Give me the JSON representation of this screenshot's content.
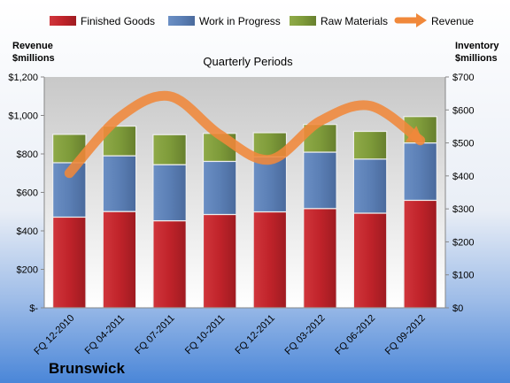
{
  "company": "Brunswick",
  "colors": {
    "finished": "#c0232a",
    "wip": "#5b7fb5",
    "raw": "#7e9b3a",
    "revenue": "#f0883a"
  },
  "chart_data": {
    "type": "bar",
    "stacked": true,
    "title": "Quarterly Periods",
    "categories": [
      "FQ 12-2010",
      "FQ 04-2011",
      "FQ 07-2011",
      "FQ 10-2011",
      "FQ 12-2011",
      "FQ 03-2012",
      "FQ 06-2012",
      "FQ 09-2012"
    ],
    "series": [
      {
        "name": "Finished Goods",
        "axis": "right",
        "values": [
          275,
          292,
          264,
          283,
          291,
          301,
          287,
          326
        ]
      },
      {
        "name": "Work in Progress",
        "axis": "right",
        "values": [
          165,
          169,
          170,
          161,
          167,
          171,
          164,
          174
        ]
      },
      {
        "name": "Raw Materials",
        "axis": "right",
        "values": [
          86,
          90,
          91,
          85,
          73,
          84,
          84,
          80
        ]
      },
      {
        "name": "Revenue",
        "axis": "left",
        "type": "line",
        "values": [
          700,
          990,
          1100,
          900,
          770,
          970,
          1050,
          870
        ]
      }
    ],
    "left_axis": {
      "title_line1": "Revenue",
      "title_line2": "$millions",
      "ylim": [
        0,
        1200
      ],
      "ticks": [
        0,
        200,
        400,
        600,
        800,
        1000,
        1200
      ],
      "tick_labels": [
        "$-",
        "$200",
        "$400",
        "$600",
        "$800",
        "$1,000",
        "$1,200"
      ]
    },
    "right_axis": {
      "title_line1": "Inventory",
      "title_line2": "$millions",
      "ylim": [
        0,
        700
      ],
      "ticks": [
        0,
        100,
        200,
        300,
        400,
        500,
        600,
        700
      ],
      "tick_labels": [
        "$0",
        "$100",
        "$200",
        "$300",
        "$400",
        "$500",
        "$600",
        "$700"
      ]
    },
    "legend_position": "top",
    "grid": false
  }
}
